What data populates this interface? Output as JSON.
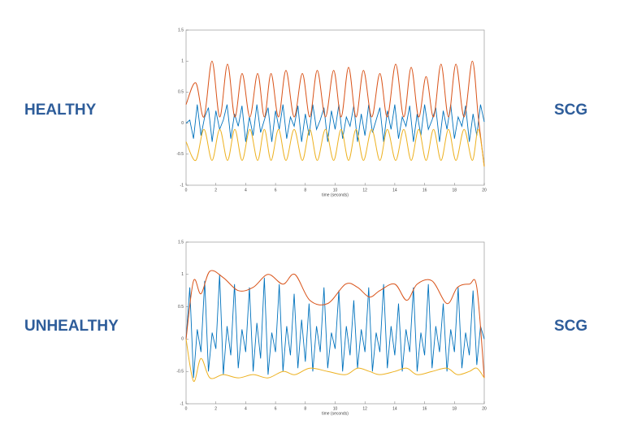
{
  "chart_data": [
    {
      "type": "line",
      "row_label": "HEALTHY",
      "signal_label": "SCG",
      "xlabel": "time (seconds)",
      "xlim": [
        0,
        20
      ],
      "xticks": [
        0,
        2,
        4,
        6,
        8,
        10,
        12,
        14,
        16,
        18,
        20
      ],
      "ylim": [
        -1,
        1.5
      ],
      "yticks": [
        -1,
        -0.5,
        0,
        0.5,
        1,
        1.5
      ],
      "series": [
        {
          "color": "#0072bd",
          "x": [
            0,
            0.25,
            0.5,
            0.75,
            1,
            1.25,
            1.5,
            1.75,
            2,
            2.25,
            2.5,
            2.75,
            3,
            3.25,
            3.5,
            3.75,
            4,
            4.25,
            4.5,
            4.75,
            5,
            5.25,
            5.5,
            5.75,
            6,
            6.25,
            6.5,
            6.75,
            7,
            7.25,
            7.5,
            7.75,
            8,
            8.25,
            8.5,
            8.75,
            9,
            9.25,
            9.5,
            9.75,
            10,
            10.25,
            10.5,
            10.75,
            11,
            11.25,
            11.5,
            11.75,
            12,
            12.25,
            12.5,
            12.75,
            13,
            13.25,
            13.5,
            13.75,
            14,
            14.25,
            14.5,
            14.75,
            15,
            15.25,
            15.5,
            15.75,
            16,
            16.25,
            16.5,
            16.75,
            17,
            17.25,
            17.5,
            17.75,
            18,
            18.25,
            18.5,
            18.75,
            19,
            19.25,
            19.5,
            19.75,
            20
          ],
          "values": [
            0,
            0.05,
            -0.25,
            0.3,
            -0.2,
            0.1,
            0.25,
            -0.3,
            0.2,
            -0.1,
            0.05,
            0.3,
            -0.25,
            0.15,
            -0.05,
            0.28,
            -0.3,
            0.1,
            -0.2,
            0.3,
            -0.15,
            0.05,
            0.25,
            -0.3,
            0.2,
            -0.1,
            0.3,
            -0.25,
            0.1,
            -0.05,
            0.28,
            -0.3,
            0.15,
            -0.2,
            0.3,
            -0.1,
            0.05,
            0.25,
            -0.3,
            0.2,
            -0.1,
            0.3,
            -0.25,
            0.1,
            -0.05,
            0.28,
            -0.3,
            0.15,
            -0.2,
            0.3,
            -0.15,
            0.05,
            0.25,
            -0.3,
            0.2,
            -0.1,
            0.3,
            -0.25,
            0.1,
            -0.05,
            0.28,
            -0.3,
            0.15,
            -0.2,
            0.3,
            -0.1,
            0.05,
            0.25,
            -0.3,
            0.2,
            -0.1,
            0.3,
            -0.25,
            0.1,
            -0.05,
            0.28,
            -0.3,
            0.15,
            -0.2,
            0.3,
            0.02
          ]
        },
        {
          "color": "#d95319",
          "smooth": true,
          "x": [
            0,
            0.65,
            1.2,
            1.74,
            2.26,
            2.78,
            3.27,
            3.76,
            4.28,
            4.8,
            5.25,
            5.7,
            6.2,
            6.7,
            7.25,
            7.8,
            8.3,
            8.8,
            9.35,
            9.9,
            10.4,
            10.9,
            11.4,
            11.9,
            12.45,
            13.0,
            13.5,
            14.06,
            14.6,
            15.1,
            15.6,
            16.1,
            16.6,
            17.1,
            17.6,
            18.1,
            18.65,
            19.2,
            19.6,
            20
          ],
          "values": [
            0.3,
            0.65,
            0.1,
            1.0,
            0.1,
            0.95,
            0.1,
            0.8,
            0.1,
            0.8,
            0.1,
            0.8,
            0.1,
            0.85,
            0.1,
            0.8,
            0.1,
            0.85,
            0.1,
            0.85,
            0.1,
            0.9,
            0.1,
            0.85,
            0.1,
            0.8,
            0.1,
            0.95,
            0.1,
            0.9,
            0.1,
            0.75,
            0.1,
            0.95,
            0.1,
            0.95,
            0.1,
            1.0,
            0.1,
            -0.7
          ]
        },
        {
          "color": "#edb120",
          "smooth": true,
          "x": [
            0,
            0.65,
            1.2,
            1.74,
            2.26,
            2.78,
            3.27,
            3.76,
            4.28,
            4.8,
            5.25,
            5.7,
            6.2,
            6.7,
            7.25,
            7.8,
            8.3,
            8.8,
            9.35,
            9.9,
            10.4,
            10.9,
            11.4,
            11.9,
            12.45,
            13.0,
            13.5,
            14.06,
            14.6,
            15.1,
            15.6,
            16.1,
            16.6,
            17.1,
            17.6,
            18.1,
            18.65,
            19.2,
            19.6,
            20
          ],
          "values": [
            -0.3,
            -0.6,
            -0.1,
            -0.6,
            -0.1,
            -0.6,
            -0.1,
            -0.6,
            -0.1,
            -0.6,
            -0.1,
            -0.6,
            -0.1,
            -0.6,
            -0.1,
            -0.6,
            -0.1,
            -0.6,
            -0.1,
            -0.6,
            -0.1,
            -0.6,
            -0.1,
            -0.6,
            -0.1,
            -0.6,
            -0.1,
            -0.6,
            -0.1,
            -0.6,
            -0.1,
            -0.6,
            -0.1,
            -0.6,
            -0.1,
            -0.6,
            -0.1,
            -0.6,
            -0.1,
            -0.7
          ]
        }
      ]
    },
    {
      "type": "line",
      "row_label": "UNHEALTHY",
      "signal_label": "SCG",
      "xlabel": "time (seconds)",
      "xlim": [
        0,
        20
      ],
      "xticks": [
        0,
        2,
        4,
        6,
        8,
        10,
        12,
        14,
        16,
        18,
        20
      ],
      "ylim": [
        -1,
        1.5
      ],
      "yticks": [
        -1,
        -0.5,
        0,
        0.5,
        1,
        1.5
      ],
      "series": [
        {
          "color": "#0072bd",
          "x": [
            0,
            0.25,
            0.5,
            0.75,
            1,
            1.25,
            1.5,
            1.75,
            2,
            2.25,
            2.5,
            2.75,
            3,
            3.25,
            3.5,
            3.75,
            4,
            4.25,
            4.5,
            4.75,
            5,
            5.25,
            5.5,
            5.75,
            6,
            6.25,
            6.5,
            6.75,
            7,
            7.25,
            7.5,
            7.75,
            8,
            8.25,
            8.5,
            8.75,
            9,
            9.25,
            9.5,
            9.75,
            10,
            10.25,
            10.5,
            10.75,
            11,
            11.25,
            11.5,
            11.75,
            12,
            12.25,
            12.5,
            12.75,
            13,
            13.25,
            13.5,
            13.75,
            14,
            14.25,
            14.5,
            14.75,
            15,
            15.25,
            15.5,
            15.75,
            16,
            16.25,
            16.5,
            16.75,
            17,
            17.25,
            17.5,
            17.75,
            18,
            18.25,
            18.5,
            18.75,
            19,
            19.25,
            19.5,
            19.75,
            20
          ],
          "values": [
            0,
            0.8,
            -0.6,
            0.15,
            -0.2,
            0.9,
            -0.5,
            0.1,
            -0.15,
            1.0,
            -0.55,
            0.2,
            -0.25,
            0.85,
            -0.45,
            0.15,
            -0.2,
            0.8,
            -0.5,
            0.25,
            -0.3,
            0.95,
            -0.55,
            0.1,
            -0.2,
            0.85,
            -0.5,
            0.2,
            -0.25,
            0.7,
            -0.45,
            0.3,
            -0.35,
            0.55,
            -0.5,
            0.2,
            -0.2,
            0.8,
            -0.45,
            0.1,
            -0.15,
            0.75,
            -0.5,
            0.2,
            -0.25,
            0.6,
            -0.45,
            0.15,
            -0.2,
            0.8,
            -0.5,
            0.1,
            -0.2,
            0.85,
            -0.45,
            0.2,
            -0.25,
            0.55,
            -0.5,
            0.15,
            -0.2,
            0.8,
            -0.5,
            0.1,
            -0.25,
            0.85,
            -0.45,
            0.2,
            -0.2,
            0.55,
            -0.5,
            0.15,
            -0.2,
            0.8,
            -0.45,
            0.1,
            -0.25,
            0.75,
            -0.4,
            0.2,
            0
          ]
        },
        {
          "color": "#d95319",
          "smooth": true,
          "x": [
            0,
            0.5,
            1,
            1.6,
            2.5,
            3.5,
            4.5,
            5.5,
            6.5,
            7.3,
            8.3,
            9.5,
            10.7,
            11.5,
            12.3,
            13,
            14,
            14.8,
            15.5,
            16.5,
            17.5,
            18.2,
            19,
            19.5,
            20
          ],
          "values": [
            0,
            0.9,
            0.7,
            1.05,
            0.95,
            0.75,
            0.8,
            1.0,
            0.85,
            1.0,
            0.6,
            0.55,
            0.85,
            0.8,
            0.65,
            0.75,
            0.85,
            0.6,
            0.85,
            0.9,
            0.55,
            0.8,
            0.85,
            0.8,
            -0.6
          ]
        },
        {
          "color": "#edb120",
          "smooth": true,
          "x": [
            0,
            0.5,
            1,
            1.6,
            2.5,
            3.5,
            4.5,
            5.5,
            6.5,
            7.3,
            8.3,
            9.5,
            10.7,
            11.5,
            12.3,
            13,
            14,
            14.8,
            15.5,
            16.5,
            17.5,
            18.2,
            19,
            19.5,
            20
          ],
          "values": [
            0,
            -0.65,
            -0.3,
            -0.6,
            -0.55,
            -0.6,
            -0.55,
            -0.6,
            -0.5,
            -0.55,
            -0.45,
            -0.5,
            -0.55,
            -0.45,
            -0.5,
            -0.55,
            -0.5,
            -0.45,
            -0.55,
            -0.5,
            -0.45,
            -0.55,
            -0.5,
            -0.45,
            -0.6
          ]
        }
      ]
    }
  ]
}
